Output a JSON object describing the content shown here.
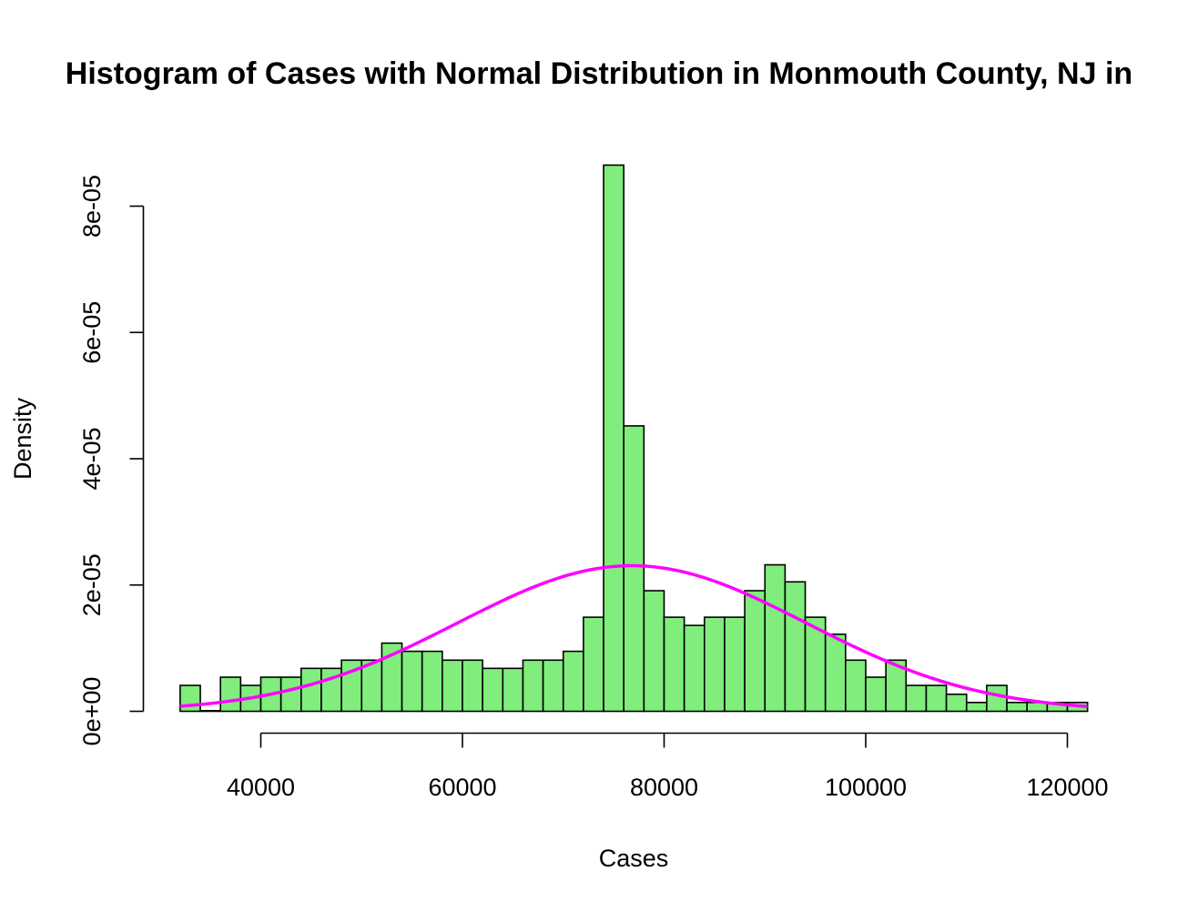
{
  "chart_data": {
    "type": "bar",
    "title": "Histogram of Cases with Normal Distribution in Monmouth County, NJ in",
    "xlabel": "Cases",
    "ylabel": "Density",
    "xlim": [
      32000,
      122000
    ],
    "ylim": [
      0,
      9e-05
    ],
    "x_ticks": [
      {
        "value": 40000,
        "label": "40000"
      },
      {
        "value": 60000,
        "label": "60000"
      },
      {
        "value": 80000,
        "label": "80000"
      },
      {
        "value": 100000,
        "label": "100000"
      },
      {
        "value": 120000,
        "label": "120000"
      }
    ],
    "y_ticks": [
      {
        "value": 0,
        "label": "0e+00"
      },
      {
        "value": 2e-05,
        "label": "2e-05"
      },
      {
        "value": 4e-05,
        "label": "4e-05"
      },
      {
        "value": 6e-05,
        "label": "6e-05"
      },
      {
        "value": 8e-05,
        "label": "8e-05"
      }
    ],
    "bin_start": 32000,
    "bin_width": 2000,
    "densities": [
      4.1e-06,
      1e-07,
      5.4e-06,
      4.1e-06,
      5.4e-06,
      5.4e-06,
      6.8e-06,
      6.8e-06,
      8.1e-06,
      8.1e-06,
      1.08e-05,
      9.5e-06,
      9.5e-06,
      8.1e-06,
      8.1e-06,
      6.8e-06,
      6.8e-06,
      8.1e-06,
      8.1e-06,
      9.5e-06,
      1.49e-05,
      8.65e-05,
      4.52e-05,
      1.91e-05,
      1.49e-05,
      1.36e-05,
      1.49e-05,
      1.49e-05,
      1.91e-05,
      2.32e-05,
      2.05e-05,
      1.49e-05,
      1.22e-05,
      8.1e-06,
      5.4e-06,
      8.1e-06,
      4.1e-06,
      4.1e-06,
      2.7e-06,
      1.4e-06,
      4.1e-06,
      1.4e-06,
      1.4e-06,
      1.4e-06,
      1.4e-06
    ],
    "normal_curve": {
      "mean": 76800,
      "sd": 17300
    },
    "bar_color": "#80ed7d",
    "bar_border": "#000000",
    "curve_color": "#ff00ff",
    "grid": false,
    "legend": "none"
  }
}
